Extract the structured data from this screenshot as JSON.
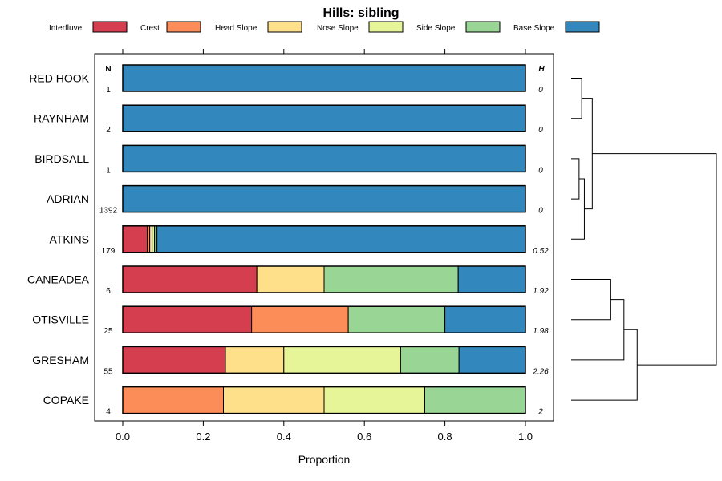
{
  "chart_data": {
    "type": "bar",
    "orientation": "horizontal-stacked",
    "title": "Hills: sibling",
    "xlabel": "Proportion",
    "xlim": [
      0,
      1
    ],
    "xticks": [
      "0.0",
      "0.2",
      "0.4",
      "0.6",
      "0.8",
      "1.0"
    ],
    "n_header": "N",
    "h_header": "H",
    "legend": [
      {
        "name": "Interfluve",
        "color": "#D53E4F"
      },
      {
        "name": "Crest",
        "color": "#FC8D59"
      },
      {
        "name": "Head Slope",
        "color": "#FEE08B"
      },
      {
        "name": "Nose Slope",
        "color": "#E6F598"
      },
      {
        "name": "Side Slope",
        "color": "#99D594"
      },
      {
        "name": "Base Slope",
        "color": "#3288BD"
      }
    ],
    "rows": [
      {
        "label": "RED HOOK",
        "n": "1",
        "h": "0",
        "values": [
          0,
          0,
          0,
          0,
          0,
          1
        ]
      },
      {
        "label": "RAYNHAM",
        "n": "2",
        "h": "0",
        "values": [
          0,
          0,
          0,
          0,
          0,
          1
        ]
      },
      {
        "label": "BIRDSALL",
        "n": "1",
        "h": "0",
        "values": [
          0,
          0,
          0,
          0,
          0,
          1
        ]
      },
      {
        "label": "ADRIAN",
        "n": "1392",
        "h": "0",
        "values": [
          0,
          0,
          0,
          0,
          0,
          1
        ]
      },
      {
        "label": "ATKINS",
        "n": "179",
        "h": "0.52",
        "values": [
          0.061,
          0.006,
          0.006,
          0.006,
          0.006,
          0.915
        ]
      },
      {
        "label": "CANEADEA",
        "n": "6",
        "h": "1.92",
        "values": [
          0.333,
          0,
          0.167,
          0,
          0.333,
          0.167
        ]
      },
      {
        "label": "OTISVILLE",
        "n": "25",
        "h": "1.98",
        "values": [
          0.32,
          0.24,
          0,
          0,
          0.24,
          0.2
        ]
      },
      {
        "label": "GRESHAM",
        "n": "55",
        "h": "2.26",
        "values": [
          0.255,
          0,
          0.145,
          0.29,
          0.145,
          0.165
        ]
      },
      {
        "label": "COPAKE",
        "n": "4",
        "h": "2",
        "values": [
          0,
          0.25,
          0.25,
          0.25,
          0.25,
          0
        ]
      }
    ],
    "dendrogram": {
      "description": "hierarchical clustering of rows",
      "merges": [
        [
          0,
          1,
          0.04
        ],
        [
          2,
          3,
          0.03
        ],
        [
          "m1",
          4,
          0.05
        ],
        [
          "m0",
          "m2",
          0.08
        ],
        [
          5,
          6,
          0.15
        ],
        [
          "m4",
          7,
          0.2
        ],
        [
          "m5",
          8,
          0.25
        ],
        [
          "m3",
          "m6",
          0.55
        ]
      ]
    }
  }
}
